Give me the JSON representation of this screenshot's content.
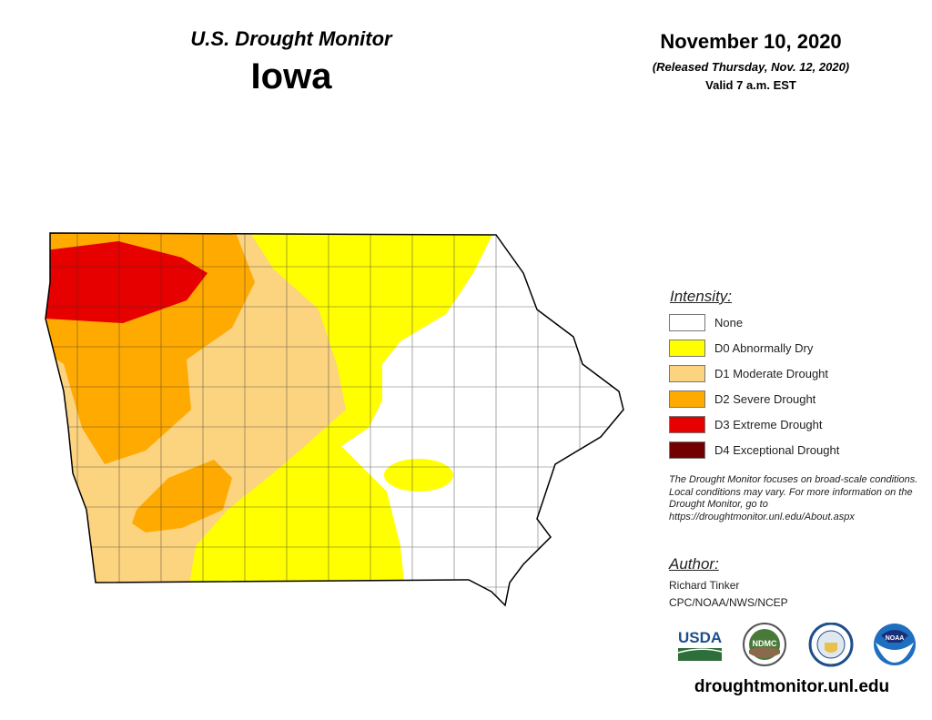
{
  "header": {
    "supertitle": "U.S. Drought Monitor",
    "state": "Iowa",
    "date": "November 10, 2020",
    "released": "(Released Thursday, Nov. 12, 2020)",
    "valid": "Valid 7 a.m. EST"
  },
  "legend": {
    "title": "Intensity:",
    "items": [
      {
        "label": "None",
        "color": "#ffffff"
      },
      {
        "label": "D0 Abnormally Dry",
        "color": "#ffff00"
      },
      {
        "label": "D1 Moderate Drought",
        "color": "#fcd37f"
      },
      {
        "label": "D2 Severe Drought",
        "color": "#ffaa00"
      },
      {
        "label": "D3 Extreme Drought",
        "color": "#e60000"
      },
      {
        "label": "D4 Exceptional Drought",
        "color": "#730000"
      }
    ]
  },
  "note": "The Drought Monitor focuses on broad-scale conditions. Local conditions may vary. For more information on the Drought Monitor, go to https://droughtmonitor.unl.edu/About.aspx",
  "author": {
    "title": "Author:",
    "name": "Richard Tinker",
    "org": "CPC/NOAA/NWS/NCEP"
  },
  "logos": {
    "usda": "USDA",
    "ndmc": "NDMC",
    "noaa": "NOAA",
    "doc": "Department of Commerce seal"
  },
  "url": "droughtmonitor.unl.edu"
}
